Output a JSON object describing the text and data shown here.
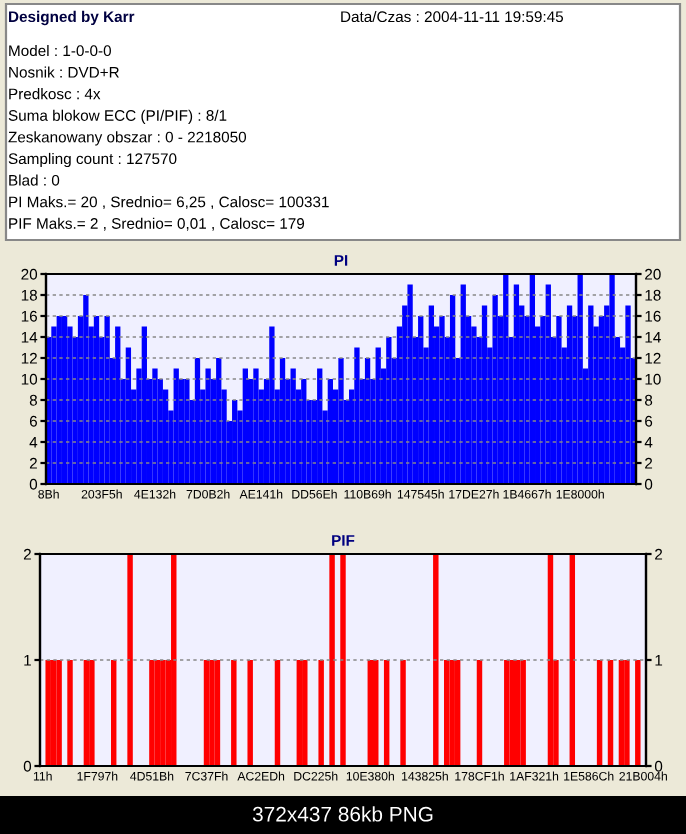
{
  "chart_data": [
    {
      "type": "bar",
      "title": "PI",
      "annotations": [
        "Designed by Karr",
        "Data/Czas : 2004-11-11 19:59:45",
        "Model : 1-0-0-0",
        "Nosnik : DVD+R",
        "Predkosc : 4x",
        "Suma blokow ECC (PI/PIF) : 8/1",
        "Zeskanowany obszar : 0 - 2218050",
        "Sampling count : 127570",
        "Blad : 0",
        "PI Maks.= 20 , Srednio= 6,25 , Calosc= 100331",
        "PIF Maks.= 2 , Srednio= 0,01 , Calosc= 179"
      ],
      "categories": [
        "8Bh",
        null,
        null,
        null,
        null,
        null,
        null,
        null,
        null,
        null,
        "203F5h",
        null,
        null,
        null,
        null,
        null,
        null,
        null,
        null,
        null,
        "4E132h",
        null,
        null,
        null,
        null,
        null,
        null,
        null,
        null,
        null,
        "7D0B2h",
        null,
        null,
        null,
        null,
        null,
        null,
        null,
        null,
        null,
        "AE141h",
        null,
        null,
        null,
        null,
        null,
        null,
        null,
        null,
        null,
        "DD56Eh",
        null,
        null,
        null,
        null,
        null,
        null,
        null,
        null,
        null,
        "110B69h",
        null,
        null,
        null,
        null,
        null,
        null,
        null,
        null,
        null,
        "147545h",
        null,
        null,
        null,
        null,
        null,
        null,
        null,
        null,
        null,
        "17DE27h",
        null,
        null,
        null,
        null,
        null,
        null,
        null,
        null,
        null,
        "1B4667h",
        null,
        null,
        null,
        null,
        null,
        null,
        null,
        null,
        null,
        "1E8000h",
        null,
        null,
        null,
        null,
        null,
        null,
        null,
        null,
        null,
        null
      ],
      "values": [
        14,
        15,
        16,
        16,
        15,
        14,
        16,
        18,
        15,
        16,
        14,
        16,
        12,
        15,
        10,
        13,
        9,
        11,
        15,
        10,
        11,
        10,
        9,
        7,
        11,
        10,
        10,
        8,
        12,
        9,
        11,
        10,
        12,
        9,
        6,
        8,
        7,
        11,
        10,
        11,
        9,
        10,
        15,
        9,
        12,
        10,
        11,
        9,
        10,
        8,
        8,
        11,
        7,
        10,
        9,
        12,
        8,
        9,
        13,
        10,
        12,
        10,
        13,
        11,
        14,
        12,
        15,
        17,
        19,
        14,
        16,
        13,
        17,
        15,
        16,
        14,
        18,
        12,
        19,
        16,
        15,
        14,
        17,
        13,
        18,
        16,
        20,
        14,
        19,
        17,
        16,
        20,
        15,
        16,
        19,
        14,
        16,
        13,
        17,
        16,
        20,
        11,
        17,
        15,
        16,
        17,
        20,
        14,
        13,
        17,
        12
      ],
      "color": "#0000ff",
      "ylim": [
        0,
        20
      ],
      "yticks": [
        0,
        2,
        4,
        6,
        8,
        10,
        12,
        14,
        16,
        18,
        20
      ],
      "y2lim": [
        0,
        20
      ],
      "y2ticks": [
        0,
        2,
        4,
        6,
        8,
        10,
        12,
        14,
        16,
        18,
        20
      ],
      "grid": "y"
    },
    {
      "type": "bar",
      "title": "PIF",
      "annotations": [
        "372x437 86kb PNG"
      ],
      "categories": [
        "11h",
        null,
        null,
        null,
        null,
        null,
        null,
        null,
        null,
        null,
        "1F797h",
        null,
        null,
        null,
        null,
        null,
        null,
        null,
        null,
        null,
        "4D51Bh",
        null,
        null,
        null,
        null,
        null,
        null,
        null,
        null,
        null,
        "7C37Fh",
        null,
        null,
        null,
        null,
        null,
        null,
        null,
        null,
        null,
        "AC2EDh",
        null,
        null,
        null,
        null,
        null,
        null,
        null,
        null,
        null,
        "DC225h",
        null,
        null,
        null,
        null,
        null,
        null,
        null,
        null,
        null,
        "10E380h",
        null,
        null,
        null,
        null,
        null,
        null,
        null,
        null,
        null,
        "143825h",
        null,
        null,
        null,
        null,
        null,
        null,
        null,
        null,
        null,
        "178CF1h",
        null,
        null,
        null,
        null,
        null,
        null,
        null,
        null,
        null,
        "1AF321h",
        null,
        null,
        null,
        null,
        null,
        null,
        null,
        null,
        null,
        "1E586Ch",
        null,
        null,
        null,
        null,
        null,
        null,
        null,
        null,
        null,
        "21B004h"
      ],
      "values": [
        0,
        1,
        1,
        1,
        0,
        1,
        0,
        0,
        1,
        1,
        0,
        0,
        0,
        1,
        0,
        0,
        2,
        0,
        0,
        0,
        1,
        1,
        1,
        1,
        2,
        0,
        0,
        0,
        0,
        0,
        1,
        1,
        1,
        0,
        0,
        1,
        0,
        0,
        1,
        0,
        0,
        0,
        0,
        1,
        0,
        0,
        0,
        1,
        1,
        0,
        0,
        1,
        0,
        2,
        0,
        2,
        0,
        0,
        0,
        0,
        1,
        1,
        0,
        1,
        0,
        0,
        1,
        0,
        0,
        0,
        0,
        0,
        2,
        0,
        1,
        1,
        1,
        0,
        0,
        0,
        1,
        0,
        0,
        0,
        0,
        1,
        1,
        1,
        1,
        0,
        0,
        0,
        0,
        2,
        1,
        0,
        0,
        2,
        0,
        0,
        0,
        0,
        1,
        0,
        1,
        0,
        1,
        1,
        0,
        1,
        0
      ],
      "color": "#ff0000",
      "ylim": [
        0,
        2
      ],
      "yticks": [
        0,
        1,
        2
      ],
      "y2lim": [
        0,
        2
      ],
      "y2ticks": [
        0,
        1,
        2
      ],
      "grid": "y"
    }
  ]
}
